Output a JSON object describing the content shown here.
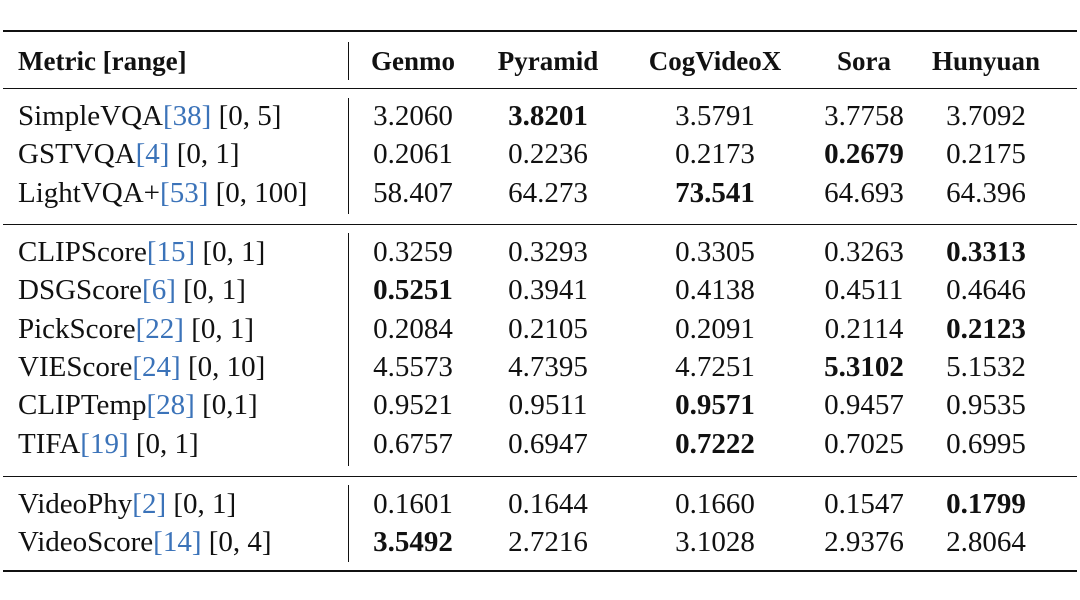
{
  "table": {
    "columns": [
      "Metric [range]",
      "Genmo",
      "Pyramid",
      "CogVideoX",
      "Sora",
      "Hunyuan"
    ],
    "groups": [
      {
        "rows": [
          {
            "name": "SimpleVQA",
            "ref": "38",
            "range": " [0, 5]",
            "values": [
              "3.2060",
              "3.8201",
              "3.5791",
              "3.7758",
              "3.7092"
            ],
            "best": 1
          },
          {
            "name": "GSTVQA",
            "ref": "4",
            "range": " [0, 1]",
            "values": [
              "0.2061",
              "0.2236",
              "0.2173",
              "0.2679",
              "0.2175"
            ],
            "best": 3
          },
          {
            "name": "LightVQA+",
            "ref": "53",
            "range": " [0, 100]",
            "values": [
              "58.407",
              "64.273",
              "73.541",
              "64.693",
              "64.396"
            ],
            "best": 2
          }
        ]
      },
      {
        "rows": [
          {
            "name": "CLIPScore",
            "ref": "15",
            "range": " [0, 1]",
            "values": [
              "0.3259",
              "0.3293",
              "0.3305",
              "0.3263",
              "0.3313"
            ],
            "best": 4
          },
          {
            "name": "DSGScore",
            "ref": "6",
            "range": " [0, 1]",
            "values": [
              "0.5251",
              "0.3941",
              "0.4138",
              "0.4511",
              "0.4646"
            ],
            "best": 0
          },
          {
            "name": "PickScore",
            "ref": "22",
            "range": " [0, 1]",
            "values": [
              "0.2084",
              "0.2105",
              "0.2091",
              "0.2114",
              "0.2123"
            ],
            "best": 4
          },
          {
            "name": "VIEScore",
            "ref": "24",
            "range": " [0, 10]",
            "values": [
              "4.5573",
              "4.7395",
              "4.7251",
              "5.3102",
              "5.1532"
            ],
            "best": 3
          },
          {
            "name": "CLIPTemp",
            "ref": "28",
            "range": " [0,1]",
            "values": [
              "0.9521",
              "0.9511",
              "0.9571",
              "0.9457",
              "0.9535"
            ],
            "best": 2
          },
          {
            "name": "TIFA",
            "ref": "19",
            "range": " [0, 1]",
            "values": [
              "0.6757",
              "0.6947",
              "0.7222",
              "0.7025",
              "0.6995"
            ],
            "best": 2
          }
        ]
      },
      {
        "rows": [
          {
            "name": "VideoPhy",
            "ref": "2",
            "range": " [0, 1]",
            "values": [
              "0.1601",
              "0.1644",
              "0.1660",
              "0.1547",
              "0.1799"
            ],
            "best": 4
          },
          {
            "name": "VideoScore",
            "ref": "14",
            "range": " [0, 4]",
            "values": [
              "3.5492",
              "2.7216",
              "3.1028",
              "2.9376",
              "2.8064"
            ],
            "best": 0
          }
        ]
      }
    ]
  }
}
